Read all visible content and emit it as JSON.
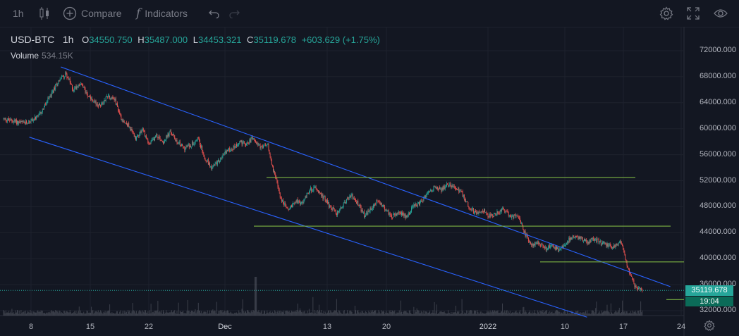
{
  "toolbar": {
    "interval": "1h",
    "compare_label": "Compare",
    "indicators_label": "Indicators"
  },
  "legend": {
    "symbol": "USD-BTC",
    "interval": "1h",
    "o_label": "O",
    "o_value": "34550.750",
    "h_label": "H",
    "h_value": "35487.000",
    "l_label": "L",
    "l_value": "34453.321",
    "c_label": "C",
    "c_value": "35119.678",
    "change": "+603.629 (+1.75%)",
    "volume_label": "Volume",
    "volume_value": "534.15K"
  },
  "price_axis": [
    "72000.000",
    "68000.000",
    "64000.000",
    "60000.000",
    "56000.000",
    "52000.000",
    "48000.000",
    "44000.000",
    "40000.000",
    "36000.000",
    "32000.000"
  ],
  "time_axis": [
    "8",
    "15",
    "22",
    "Dec",
    "13",
    "20",
    "2022",
    "10",
    "17",
    "24"
  ],
  "current_price": "35119.678",
  "countdown": "19:04",
  "colors": {
    "background": "#131722",
    "up": "#26a69a",
    "down": "#ef5350",
    "trendline": "#2962ff",
    "hline": "#7cb342"
  },
  "chart_data": {
    "type": "candlestick",
    "symbol": "USD-BTC",
    "interval": "1h",
    "price_range": [
      31000,
      74500
    ],
    "close_path": [
      [
        0,
        61500
      ],
      [
        3,
        60800
      ],
      [
        5,
        61800
      ],
      [
        7,
        65500
      ],
      [
        8,
        67500
      ],
      [
        9,
        68500
      ],
      [
        10,
        66000
      ],
      [
        11,
        67000
      ],
      [
        12,
        65500
      ],
      [
        13,
        64000
      ],
      [
        14,
        63500
      ],
      [
        15,
        65200
      ],
      [
        16,
        64500
      ],
      [
        17,
        61500
      ],
      [
        18,
        60500
      ],
      [
        19,
        58500
      ],
      [
        20,
        60000
      ],
      [
        21,
        57500
      ],
      [
        22,
        59000
      ],
      [
        23,
        58000
      ],
      [
        24,
        59500
      ],
      [
        25,
        58000
      ],
      [
        26,
        57000
      ],
      [
        27,
        57500
      ],
      [
        28,
        58500
      ],
      [
        29,
        55500
      ],
      [
        30,
        54000
      ],
      [
        31,
        55000
      ],
      [
        32,
        56500
      ],
      [
        33,
        57000
      ],
      [
        34,
        58000
      ],
      [
        35,
        57500
      ],
      [
        36,
        58800
      ],
      [
        37,
        57000
      ],
      [
        38,
        57500
      ],
      [
        39,
        53000
      ],
      [
        40,
        49000
      ],
      [
        41,
        47500
      ],
      [
        42,
        49000
      ],
      [
        43,
        48500
      ],
      [
        44,
        50500
      ],
      [
        45,
        51000
      ],
      [
        46,
        49500
      ],
      [
        47,
        48000
      ],
      [
        48,
        47000
      ],
      [
        49,
        48500
      ],
      [
        50,
        49800
      ],
      [
        51,
        48500
      ],
      [
        52,
        46500
      ],
      [
        53,
        47800
      ],
      [
        54,
        49000
      ],
      [
        55,
        47500
      ],
      [
        56,
        46500
      ],
      [
        57,
        47000
      ],
      [
        58,
        46500
      ],
      [
        59,
        48000
      ],
      [
        60,
        48500
      ],
      [
        61,
        50000
      ],
      [
        62,
        51000
      ],
      [
        63,
        50500
      ],
      [
        64,
        51500
      ],
      [
        65,
        51000
      ],
      [
        66,
        50000
      ],
      [
        67,
        48000
      ],
      [
        68,
        47000
      ],
      [
        69,
        47500
      ],
      [
        70,
        46500
      ],
      [
        71,
        47000
      ],
      [
        72,
        47500
      ],
      [
        73,
        46500
      ],
      [
        74,
        46500
      ],
      [
        75,
        44000
      ],
      [
        76,
        42000
      ],
      [
        77,
        42500
      ],
      [
        78,
        41500
      ],
      [
        79,
        42000
      ],
      [
        80,
        41200
      ],
      [
        81,
        42500
      ],
      [
        82,
        43500
      ],
      [
        83,
        43200
      ],
      [
        84,
        42500
      ],
      [
        85,
        43000
      ],
      [
        86,
        42500
      ],
      [
        87,
        42000
      ],
      [
        88,
        41800
      ],
      [
        89,
        42500
      ],
      [
        90,
        38000
      ],
      [
        91,
        35500
      ],
      [
        92,
        35119.678
      ]
    ],
    "volume_max_label": "534.15K",
    "drawings": {
      "channel_upper": {
        "start": [
          11,
          69500
        ],
        "end": [
          96,
          35700
        ]
      },
      "channel_lower": {
        "start": [
          3,
          58700
        ],
        "end": [
          84,
          31000
        ]
      },
      "horizontal_lines": [
        {
          "price": 52500,
          "from": 45,
          "to": 106
        },
        {
          "price": 45000,
          "from": 42,
          "to": 112
        },
        {
          "price": 39500,
          "from": 90,
          "to": 114
        },
        {
          "price": 33700,
          "from": 111,
          "to": 114
        }
      ]
    }
  }
}
